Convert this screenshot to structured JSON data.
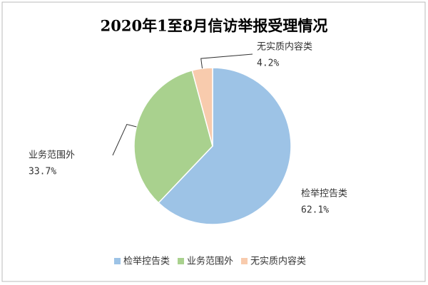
{
  "chart_data": {
    "type": "pie",
    "title": "2020年1至8月信访举报受理情况",
    "categories": [
      "检举控告类",
      "业务范围外",
      "无实质内容类"
    ],
    "values": [
      62.1,
      33.7,
      4.2
    ],
    "value_labels": [
      "62.1%",
      "33.7%",
      "4.2%"
    ],
    "colors": [
      "#9dc3e6",
      "#a9d18e",
      "#f8cbad"
    ],
    "legend": "bottom"
  }
}
